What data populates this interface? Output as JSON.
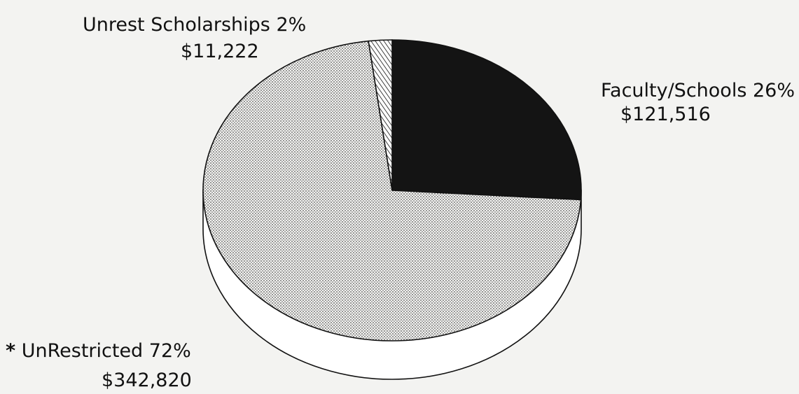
{
  "chart_data": {
    "type": "pie",
    "categories": [
      "Faculty/Schools",
      "UnRestricted",
      "Unrest Scholarships"
    ],
    "values": [
      26,
      72,
      2
    ],
    "value_labels": [
      "26%",
      "72%",
      "2%"
    ],
    "amounts": [
      121516,
      342820,
      11222
    ],
    "amount_labels": [
      "$121,516",
      "$342,820",
      "$11,222"
    ],
    "colors": [
      "#141414",
      "#d9d9d6",
      "#ffffff"
    ],
    "footnote_mark": "*"
  }
}
